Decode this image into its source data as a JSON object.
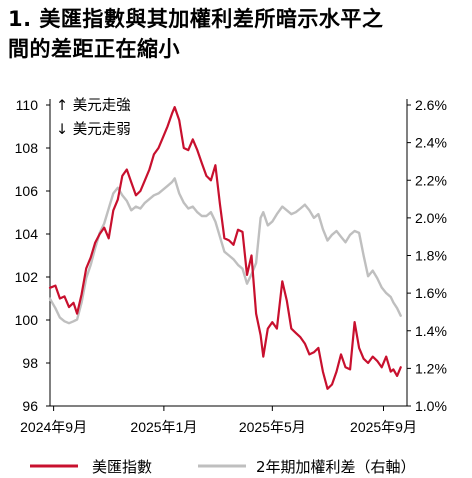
{
  "title": {
    "line1": "1. 美匯指數與其加權利差所暗示水平之",
    "line2": "間的差距正在縮小"
  },
  "chart_data": {
    "type": "line",
    "left_axis": {
      "min": 96,
      "max": 110,
      "ticks": [
        "96",
        "98",
        "100",
        "102",
        "104",
        "106",
        "108",
        "110"
      ]
    },
    "right_axis": {
      "min": 1.0,
      "max": 2.6,
      "ticks": [
        "1.0%",
        "1.2%",
        "1.4%",
        "1.6%",
        "1.8%",
        "2.0%",
        "2.2%",
        "2.4%",
        "2.6%"
      ]
    },
    "x_ticks": [
      "2024年9月",
      "2025年1月",
      "2025年5月",
      "2025年9月"
    ],
    "x_tick_dates": [
      "2024-09-01",
      "2025-01-01",
      "2025-05-01",
      "2025-09-01"
    ],
    "annotations": {
      "up": "↑ 美元走強",
      "down": "↓ 美元走弱"
    },
    "colors": {
      "dxy": "#c8102e",
      "spread": "#bfbfbf"
    },
    "grid": false,
    "legend_position": "bottom",
    "series": [
      {
        "name": "美匯指數",
        "axis": "left",
        "color": "#c8102e",
        "points": [
          [
            "2024-08-28",
            101.5
          ],
          [
            "2024-09-03",
            101.6
          ],
          [
            "2024-09-08",
            101.0
          ],
          [
            "2024-09-13",
            101.1
          ],
          [
            "2024-09-18",
            100.6
          ],
          [
            "2024-09-23",
            100.8
          ],
          [
            "2024-09-27",
            100.3
          ],
          [
            "2024-10-02",
            101.2
          ],
          [
            "2024-10-07",
            102.4
          ],
          [
            "2024-10-12",
            102.9
          ],
          [
            "2024-10-17",
            103.6
          ],
          [
            "2024-10-22",
            104.0
          ],
          [
            "2024-10-27",
            104.3
          ],
          [
            "2024-11-01",
            103.8
          ],
          [
            "2024-11-06",
            105.1
          ],
          [
            "2024-11-11",
            105.6
          ],
          [
            "2024-11-16",
            106.7
          ],
          [
            "2024-11-21",
            107.0
          ],
          [
            "2024-11-26",
            106.4
          ],
          [
            "2024-12-01",
            105.8
          ],
          [
            "2024-12-06",
            106.0
          ],
          [
            "2024-12-11",
            106.5
          ],
          [
            "2024-12-16",
            107.0
          ],
          [
            "2024-12-21",
            107.7
          ],
          [
            "2024-12-26",
            108.0
          ],
          [
            "2024-12-31",
            108.5
          ],
          [
            "2025-01-05",
            109.0
          ],
          [
            "2025-01-10",
            109.6
          ],
          [
            "2025-01-13",
            109.9
          ],
          [
            "2025-01-18",
            109.3
          ],
          [
            "2025-01-23",
            108.0
          ],
          [
            "2025-01-28",
            107.9
          ],
          [
            "2025-02-02",
            108.4
          ],
          [
            "2025-02-07",
            107.9
          ],
          [
            "2025-02-12",
            107.3
          ],
          [
            "2025-02-17",
            106.7
          ],
          [
            "2025-02-22",
            106.5
          ],
          [
            "2025-02-27",
            107.2
          ],
          [
            "2025-03-04",
            105.4
          ],
          [
            "2025-03-09",
            103.8
          ],
          [
            "2025-03-14",
            103.7
          ],
          [
            "2025-03-19",
            103.5
          ],
          [
            "2025-03-24",
            104.2
          ],
          [
            "2025-03-29",
            104.1
          ],
          [
            "2025-04-03",
            102.1
          ],
          [
            "2025-04-08",
            103.0
          ],
          [
            "2025-04-13",
            100.3
          ],
          [
            "2025-04-18",
            99.3
          ],
          [
            "2025-04-21",
            98.3
          ],
          [
            "2025-04-26",
            99.6
          ],
          [
            "2025-05-01",
            99.9
          ],
          [
            "2025-05-06",
            99.6
          ],
          [
            "2025-05-12",
            101.8
          ],
          [
            "2025-05-17",
            100.9
          ],
          [
            "2025-05-22",
            99.6
          ],
          [
            "2025-05-27",
            99.4
          ],
          [
            "2025-06-01",
            99.2
          ],
          [
            "2025-06-06",
            98.9
          ],
          [
            "2025-06-11",
            98.4
          ],
          [
            "2025-06-16",
            98.5
          ],
          [
            "2025-06-21",
            98.7
          ],
          [
            "2025-06-26",
            97.6
          ],
          [
            "2025-07-01",
            96.8
          ],
          [
            "2025-07-06",
            97.0
          ],
          [
            "2025-07-11",
            97.6
          ],
          [
            "2025-07-16",
            98.4
          ],
          [
            "2025-07-21",
            97.8
          ],
          [
            "2025-07-26",
            97.7
          ],
          [
            "2025-07-31",
            99.9
          ],
          [
            "2025-08-05",
            98.7
          ],
          [
            "2025-08-10",
            98.2
          ],
          [
            "2025-08-15",
            98.0
          ],
          [
            "2025-08-20",
            98.3
          ],
          [
            "2025-08-25",
            98.1
          ],
          [
            "2025-08-30",
            97.8
          ],
          [
            "2025-09-04",
            98.3
          ],
          [
            "2025-09-09",
            97.6
          ],
          [
            "2025-09-12",
            97.7
          ],
          [
            "2025-09-16",
            97.4
          ],
          [
            "2025-09-20",
            97.8
          ]
        ]
      },
      {
        "name": "2年期加權利差（右軸）",
        "axis": "right",
        "color": "#bfbfbf",
        "points": [
          [
            "2024-08-28",
            1.57
          ],
          [
            "2024-09-03",
            1.52
          ],
          [
            "2024-09-08",
            1.47
          ],
          [
            "2024-09-13",
            1.45
          ],
          [
            "2024-09-18",
            1.44
          ],
          [
            "2024-09-23",
            1.45
          ],
          [
            "2024-09-27",
            1.46
          ],
          [
            "2024-10-02",
            1.55
          ],
          [
            "2024-10-07",
            1.68
          ],
          [
            "2024-10-12",
            1.75
          ],
          [
            "2024-10-17",
            1.84
          ],
          [
            "2024-10-22",
            1.92
          ],
          [
            "2024-10-27",
            1.97
          ],
          [
            "2024-11-01",
            2.05
          ],
          [
            "2024-11-06",
            2.13
          ],
          [
            "2024-11-11",
            2.16
          ],
          [
            "2024-11-16",
            2.12
          ],
          [
            "2024-11-21",
            2.09
          ],
          [
            "2024-11-26",
            2.04
          ],
          [
            "2024-12-01",
            2.06
          ],
          [
            "2024-12-06",
            2.05
          ],
          [
            "2024-12-11",
            2.08
          ],
          [
            "2024-12-16",
            2.1
          ],
          [
            "2024-12-21",
            2.12
          ],
          [
            "2024-12-26",
            2.13
          ],
          [
            "2024-12-31",
            2.15
          ],
          [
            "2025-01-05",
            2.17
          ],
          [
            "2025-01-10",
            2.19
          ],
          [
            "2025-01-13",
            2.21
          ],
          [
            "2025-01-18",
            2.13
          ],
          [
            "2025-01-23",
            2.08
          ],
          [
            "2025-01-28",
            2.05
          ],
          [
            "2025-02-02",
            2.06
          ],
          [
            "2025-02-07",
            2.03
          ],
          [
            "2025-02-12",
            2.01
          ],
          [
            "2025-02-17",
            2.01
          ],
          [
            "2025-02-22",
            2.03
          ],
          [
            "2025-02-27",
            1.98
          ],
          [
            "2025-03-04",
            1.9
          ],
          [
            "2025-03-09",
            1.82
          ],
          [
            "2025-03-14",
            1.8
          ],
          [
            "2025-03-19",
            1.78
          ],
          [
            "2025-03-24",
            1.75
          ],
          [
            "2025-03-29",
            1.73
          ],
          [
            "2025-04-03",
            1.65
          ],
          [
            "2025-04-08",
            1.7
          ],
          [
            "2025-04-13",
            1.76
          ],
          [
            "2025-04-18",
            2.0
          ],
          [
            "2025-04-21",
            2.03
          ],
          [
            "2025-04-26",
            1.96
          ],
          [
            "2025-05-01",
            1.98
          ],
          [
            "2025-05-06",
            2.02
          ],
          [
            "2025-05-12",
            2.06
          ],
          [
            "2025-05-17",
            2.04
          ],
          [
            "2025-05-22",
            2.02
          ],
          [
            "2025-05-27",
            2.03
          ],
          [
            "2025-06-01",
            2.05
          ],
          [
            "2025-06-06",
            2.07
          ],
          [
            "2025-06-11",
            2.04
          ],
          [
            "2025-06-16",
            2.0
          ],
          [
            "2025-06-21",
            2.02
          ],
          [
            "2025-06-26",
            1.94
          ],
          [
            "2025-07-01",
            1.88
          ],
          [
            "2025-07-06",
            1.91
          ],
          [
            "2025-07-11",
            1.93
          ],
          [
            "2025-07-16",
            1.9
          ],
          [
            "2025-07-21",
            1.87
          ],
          [
            "2025-07-26",
            1.91
          ],
          [
            "2025-07-31",
            1.93
          ],
          [
            "2025-08-05",
            1.92
          ],
          [
            "2025-08-10",
            1.8
          ],
          [
            "2025-08-15",
            1.69
          ],
          [
            "2025-08-20",
            1.72
          ],
          [
            "2025-08-25",
            1.68
          ],
          [
            "2025-08-30",
            1.63
          ],
          [
            "2025-09-04",
            1.6
          ],
          [
            "2025-09-09",
            1.58
          ],
          [
            "2025-09-12",
            1.55
          ],
          [
            "2025-09-16",
            1.52
          ],
          [
            "2025-09-20",
            1.48
          ]
        ]
      }
    ]
  }
}
